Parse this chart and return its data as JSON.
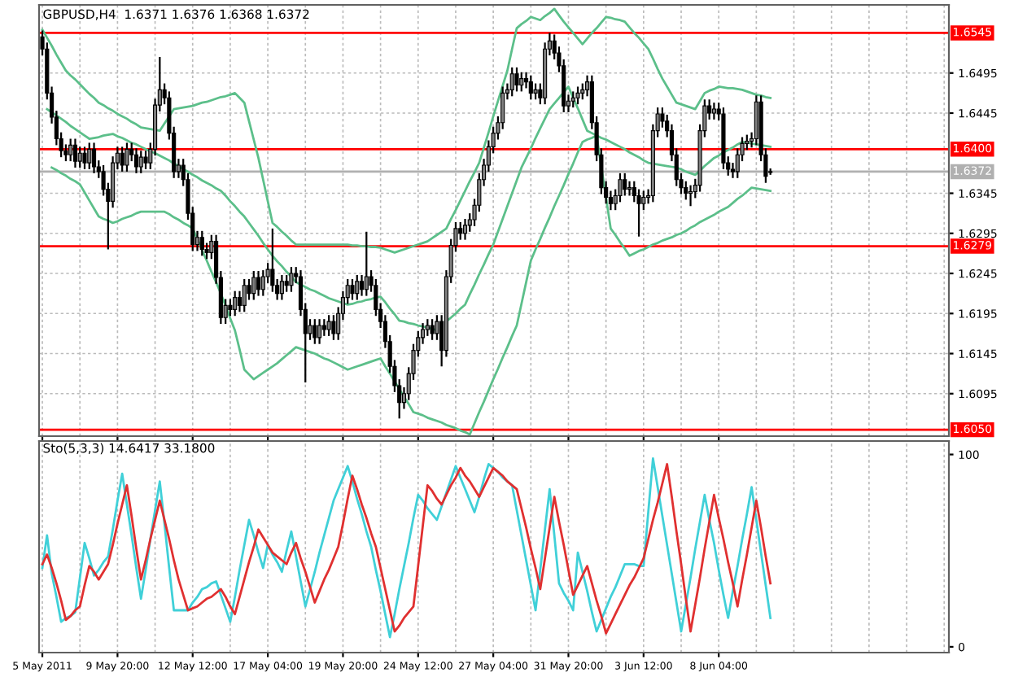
{
  "chart_data": [
    {
      "type": "candlestick",
      "title": "GBPUSD,H4  1.6371 1.6376 1.6368 1.6372",
      "ohlc": [
        [
          1.654,
          1.6548,
          1.6517,
          1.6525
        ],
        [
          1.6525,
          1.6533,
          1.6462,
          1.647
        ],
        [
          1.647,
          1.6478,
          1.6432,
          1.644
        ],
        [
          1.644,
          1.6448,
          1.6405,
          1.6413
        ],
        [
          1.6413,
          1.6421,
          1.639,
          1.6398
        ],
        [
          1.6398,
          1.6406,
          1.6385,
          1.6393
        ],
        [
          1.6393,
          1.6413,
          1.6385,
          1.6405
        ],
        [
          1.6405,
          1.6413,
          1.6377,
          1.6385
        ],
        [
          1.6385,
          1.6403,
          1.6377,
          1.6395
        ],
        [
          1.6395,
          1.6403,
          1.6375,
          1.6383
        ],
        [
          1.6383,
          1.6408,
          1.6375,
          1.64
        ],
        [
          1.64,
          1.6408,
          1.637,
          1.6378
        ],
        [
          1.6378,
          1.6386,
          1.6364,
          1.6372
        ],
        [
          1.6372,
          1.638,
          1.6342,
          1.635
        ],
        [
          1.635,
          1.6358,
          1.6275,
          1.6335
        ],
        [
          1.6335,
          1.6391,
          1.6327,
          1.6383
        ],
        [
          1.6383,
          1.6403,
          1.6375,
          1.6395
        ],
        [
          1.6395,
          1.6403,
          1.6372,
          1.638
        ],
        [
          1.638,
          1.6408,
          1.6372,
          1.64
        ],
        [
          1.64,
          1.6408,
          1.6385,
          1.6393
        ],
        [
          1.6393,
          1.6401,
          1.637,
          1.6378
        ],
        [
          1.6378,
          1.6398,
          1.637,
          1.639
        ],
        [
          1.639,
          1.6398,
          1.6375,
          1.6383
        ],
        [
          1.6383,
          1.6408,
          1.6375,
          1.64
        ],
        [
          1.64,
          1.6463,
          1.6392,
          1.6455
        ],
        [
          1.6455,
          1.6515,
          1.6447,
          1.6474
        ],
        [
          1.6474,
          1.6482,
          1.6456,
          1.6464
        ],
        [
          1.6464,
          1.6472,
          1.6412,
          1.642
        ],
        [
          1.642,
          1.6428,
          1.6364,
          1.6372
        ],
        [
          1.6372,
          1.6388,
          1.6364,
          1.638
        ],
        [
          1.638,
          1.6388,
          1.6354,
          1.6362
        ],
        [
          1.6362,
          1.637,
          1.6312,
          1.632
        ],
        [
          1.632,
          1.6328,
          1.6273,
          1.6281
        ],
        [
          1.6281,
          1.6298,
          1.6273,
          1.629
        ],
        [
          1.629,
          1.6298,
          1.6267,
          1.6275
        ],
        [
          1.6275,
          1.6283,
          1.6263,
          1.6271
        ],
        [
          1.6271,
          1.6293,
          1.6263,
          1.6285
        ],
        [
          1.6285,
          1.6293,
          1.6232,
          1.624
        ],
        [
          1.624,
          1.6248,
          1.6182,
          1.619
        ],
        [
          1.619,
          1.6213,
          1.6182,
          1.6205
        ],
        [
          1.6205,
          1.6213,
          1.6192,
          1.62
        ],
        [
          1.62,
          1.6223,
          1.6192,
          1.6215
        ],
        [
          1.6215,
          1.6223,
          1.6197,
          1.6205
        ],
        [
          1.6205,
          1.6238,
          1.6197,
          1.623
        ],
        [
          1.623,
          1.6238,
          1.6212,
          1.622
        ],
        [
          1.622,
          1.6248,
          1.6212,
          1.624
        ],
        [
          1.624,
          1.6248,
          1.6217,
          1.6225
        ],
        [
          1.6225,
          1.6249,
          1.6217,
          1.6241
        ],
        [
          1.6241,
          1.6258,
          1.6233,
          1.625
        ],
        [
          1.625,
          1.6301,
          1.6222,
          1.623
        ],
        [
          1.623,
          1.6238,
          1.6212,
          1.622
        ],
        [
          1.622,
          1.6243,
          1.6212,
          1.6235
        ],
        [
          1.6235,
          1.6243,
          1.6222,
          1.623
        ],
        [
          1.623,
          1.6253,
          1.6222,
          1.6245
        ],
        [
          1.6245,
          1.6253,
          1.6233,
          1.6241
        ],
        [
          1.6241,
          1.6249,
          1.6192,
          1.62
        ],
        [
          1.62,
          1.6208,
          1.6109,
          1.617
        ],
        [
          1.617,
          1.6188,
          1.6162,
          1.618
        ],
        [
          1.618,
          1.6188,
          1.6157,
          1.6165
        ],
        [
          1.6165,
          1.6188,
          1.6157,
          1.618
        ],
        [
          1.618,
          1.6188,
          1.6167,
          1.6175
        ],
        [
          1.6175,
          1.6193,
          1.6167,
          1.6185
        ],
        [
          1.6185,
          1.6193,
          1.6162,
          1.617
        ],
        [
          1.617,
          1.6203,
          1.6162,
          1.6195
        ],
        [
          1.6195,
          1.6223,
          1.6187,
          1.6215
        ],
        [
          1.6215,
          1.6238,
          1.6207,
          1.623
        ],
        [
          1.623,
          1.6238,
          1.6212,
          1.622
        ],
        [
          1.622,
          1.6243,
          1.6212,
          1.6235
        ],
        [
          1.6235,
          1.6243,
          1.6217,
          1.6225
        ],
        [
          1.6225,
          1.6297,
          1.6217,
          1.6241
        ],
        [
          1.6241,
          1.6249,
          1.6222,
          1.623
        ],
        [
          1.623,
          1.6238,
          1.6192,
          1.62
        ],
        [
          1.62,
          1.6208,
          1.6177,
          1.6185
        ],
        [
          1.6185,
          1.6193,
          1.6152,
          1.616
        ],
        [
          1.616,
          1.6168,
          1.6121,
          1.6129
        ],
        [
          1.6129,
          1.6137,
          1.6097,
          1.6105
        ],
        [
          1.6105,
          1.6113,
          1.6064,
          1.6084
        ],
        [
          1.6084,
          1.6103,
          1.6076,
          1.6095
        ],
        [
          1.6095,
          1.6128,
          1.6087,
          1.612
        ],
        [
          1.612,
          1.6157,
          1.6112,
          1.6149
        ],
        [
          1.6149,
          1.6173,
          1.6141,
          1.6165
        ],
        [
          1.6165,
          1.6183,
          1.6157,
          1.6175
        ],
        [
          1.6175,
          1.6188,
          1.6167,
          1.618
        ],
        [
          1.618,
          1.6188,
          1.6162,
          1.617
        ],
        [
          1.617,
          1.6193,
          1.6162,
          1.6185
        ],
        [
          1.6185,
          1.6193,
          1.6129,
          1.6149
        ],
        [
          1.6149,
          1.6249,
          1.6141,
          1.6241
        ],
        [
          1.6241,
          1.6288,
          1.6233,
          1.628
        ],
        [
          1.628,
          1.6309,
          1.6272,
          1.6301
        ],
        [
          1.6301,
          1.6309,
          1.6287,
          1.6295
        ],
        [
          1.6295,
          1.6313,
          1.6287,
          1.6305
        ],
        [
          1.6305,
          1.632,
          1.6297,
          1.6312
        ],
        [
          1.6312,
          1.6338,
          1.6304,
          1.633
        ],
        [
          1.633,
          1.637,
          1.6322,
          1.6362
        ],
        [
          1.6362,
          1.6388,
          1.6354,
          1.638
        ],
        [
          1.638,
          1.6411,
          1.6372,
          1.6403
        ],
        [
          1.6403,
          1.6428,
          1.6395,
          1.642
        ],
        [
          1.642,
          1.6441,
          1.6412,
          1.6433
        ],
        [
          1.6433,
          1.6478,
          1.6425,
          1.647
        ],
        [
          1.647,
          1.6482,
          1.6462,
          1.6474
        ],
        [
          1.6474,
          1.6502,
          1.6466,
          1.6494
        ],
        [
          1.6494,
          1.6502,
          1.6472,
          1.648
        ],
        [
          1.648,
          1.6496,
          1.6472,
          1.6488
        ],
        [
          1.6488,
          1.6496,
          1.6476,
          1.6484
        ],
        [
          1.6484,
          1.6492,
          1.6462,
          1.647
        ],
        [
          1.647,
          1.6482,
          1.6462,
          1.6474
        ],
        [
          1.6474,
          1.6482,
          1.6456,
          1.6464
        ],
        [
          1.6464,
          1.6533,
          1.6456,
          1.6525
        ],
        [
          1.6525,
          1.6545,
          1.6517,
          1.6535
        ],
        [
          1.6535,
          1.6543,
          1.6512,
          1.652
        ],
        [
          1.652,
          1.6528,
          1.6496,
          1.6504
        ],
        [
          1.6504,
          1.6512,
          1.6446,
          1.6454
        ],
        [
          1.6454,
          1.6468,
          1.6446,
          1.646
        ],
        [
          1.646,
          1.6472,
          1.6452,
          1.6464
        ],
        [
          1.6464,
          1.6478,
          1.6456,
          1.647
        ],
        [
          1.647,
          1.6482,
          1.6462,
          1.6474
        ],
        [
          1.6474,
          1.6492,
          1.6466,
          1.6484
        ],
        [
          1.6484,
          1.6492,
          1.6425,
          1.6433
        ],
        [
          1.6433,
          1.6441,
          1.6385,
          1.6393
        ],
        [
          1.6393,
          1.6401,
          1.6344,
          1.6352
        ],
        [
          1.6352,
          1.636,
          1.6332,
          1.634
        ],
        [
          1.634,
          1.6348,
          1.6324,
          1.6332
        ],
        [
          1.6332,
          1.635,
          1.6324,
          1.6342
        ],
        [
          1.6342,
          1.637,
          1.6334,
          1.6362
        ],
        [
          1.6362,
          1.637,
          1.6342,
          1.635
        ],
        [
          1.635,
          1.636,
          1.6342,
          1.6352
        ],
        [
          1.6352,
          1.636,
          1.6334,
          1.6342
        ],
        [
          1.6342,
          1.635,
          1.6291,
          1.6332
        ],
        [
          1.6332,
          1.6348,
          1.6324,
          1.634
        ],
        [
          1.634,
          1.635,
          1.6332,
          1.6342
        ],
        [
          1.6342,
          1.6431,
          1.6334,
          1.6423
        ],
        [
          1.6423,
          1.6452,
          1.6415,
          1.6444
        ],
        [
          1.6444,
          1.6452,
          1.6427,
          1.6435
        ],
        [
          1.6435,
          1.6443,
          1.6415,
          1.6423
        ],
        [
          1.6423,
          1.6431,
          1.6385,
          1.6393
        ],
        [
          1.6393,
          1.6401,
          1.6354,
          1.6362
        ],
        [
          1.6362,
          1.637,
          1.6344,
          1.6352
        ],
        [
          1.6352,
          1.636,
          1.6337,
          1.6345
        ],
        [
          1.6345,
          1.6355,
          1.6329,
          1.6347
        ],
        [
          1.6347,
          1.6363,
          1.6339,
          1.6355
        ],
        [
          1.6355,
          1.6431,
          1.6347,
          1.6423
        ],
        [
          1.6423,
          1.6462,
          1.6415,
          1.6454
        ],
        [
          1.6454,
          1.6462,
          1.6437,
          1.6445
        ],
        [
          1.6445,
          1.6458,
          1.6437,
          1.645
        ],
        [
          1.645,
          1.6458,
          1.6436,
          1.6444
        ],
        [
          1.6444,
          1.6452,
          1.6375,
          1.6383
        ],
        [
          1.6383,
          1.6391,
          1.6367,
          1.6375
        ],
        [
          1.6375,
          1.6383,
          1.6364,
          1.6372
        ],
        [
          1.6372,
          1.6401,
          1.6364,
          1.6393
        ],
        [
          1.6393,
          1.6415,
          1.6385,
          1.6407
        ],
        [
          1.6407,
          1.6418,
          1.6399,
          1.641
        ],
        [
          1.641,
          1.6421,
          1.6402,
          1.6413
        ],
        [
          1.6413,
          1.6467,
          1.6405,
          1.6459
        ],
        [
          1.6459,
          1.6467,
          1.6385,
          1.6393
        ],
        [
          1.6393,
          1.6401,
          1.6358,
          1.6366
        ],
        [
          1.6371,
          1.6376,
          1.6368,
          1.6372
        ],
        null,
        null,
        null,
        null,
        null,
        null,
        null,
        null,
        null,
        null,
        null,
        null,
        null,
        null,
        null,
        null,
        null,
        null,
        null,
        null,
        null,
        null,
        null,
        null,
        null,
        null,
        null,
        null,
        null,
        null,
        null,
        null,
        null,
        null,
        null,
        null,
        null,
        null
      ],
      "series": [
        {
          "type": "line",
          "color": "#5cbf8a",
          "values": [
            1.6549,
            1.6539,
            1.6529,
            1.6518,
            1.6508,
            1.6498,
            1.6492,
            1.6487,
            1.6481,
            1.6475,
            1.6469,
            1.6464,
            1.6458,
            1.6455,
            1.6451,
            1.6448,
            1.6444,
            1.6441,
            1.6438,
            1.6434,
            1.6431,
            1.6427,
            1.6426,
            1.6425,
            1.6424,
            1.6423,
            1.6432,
            1.6441,
            1.645,
            1.6451,
            1.6452,
            1.6453,
            1.6454,
            1.6456,
            1.6458,
            1.6459,
            1.6461,
            1.6463,
            1.6465,
            1.6466,
            1.6468,
            1.647,
            1.6464,
            1.6458,
            1.6435,
            1.6412,
            1.6389,
            1.6362,
            1.6335,
            1.6308,
            1.6303,
            1.6297,
            1.6292,
            1.6286,
            1.6281,
            1.6281,
            1.6281,
            1.6281,
            1.6281,
            1.6281,
            1.6281,
            1.6281,
            1.6281,
            1.6281,
            1.6281,
            1.6281,
            1.628,
            1.628,
            1.6279,
            1.6279,
            1.6278,
            1.6278,
            1.6277,
            1.6275,
            1.6273,
            1.6271,
            1.6273,
            1.6275,
            1.6277,
            1.6279,
            1.6281,
            1.6283,
            1.6285,
            1.6289,
            1.6293,
            1.6297,
            1.6301,
            1.6313,
            1.6324,
            1.6336,
            1.6348,
            1.636,
            1.6371,
            1.6383,
            1.6402,
            1.6421,
            1.6441,
            1.646,
            1.6479,
            1.6498,
            1.6525,
            1.6551,
            1.6556,
            1.656,
            1.6565,
            1.6563,
            1.6561,
            1.6566,
            1.657,
            1.6575,
            1.6567,
            1.6559,
            1.6552,
            1.6545,
            1.6538,
            1.6531,
            1.6538,
            1.6545,
            1.6551,
            1.6558,
            1.6565,
            1.6564,
            1.6562,
            1.6561,
            1.6559,
            1.6552,
            1.6545,
            1.6539,
            1.6532,
            1.6525,
            1.6513,
            1.65,
            1.6488,
            1.6478,
            1.6468,
            1.6458,
            1.6456,
            1.6454,
            1.6452,
            1.645,
            1.646,
            1.647,
            1.6473,
            1.6475,
            1.6478,
            1.6477,
            1.6476,
            1.6476,
            1.6475,
            1.6474,
            1.6472,
            1.647,
            1.6468,
            1.6467,
            1.6465,
            1.6464,
            null,
            null,
            null,
            null,
            null,
            null,
            null,
            null,
            null,
            null,
            null,
            null,
            null,
            null,
            null,
            null,
            null,
            null,
            null,
            null,
            null,
            null,
            null,
            null,
            null,
            null,
            null,
            null,
            null,
            null,
            null,
            null,
            null,
            null,
            null,
            null,
            null,
            null
          ]
        },
        {
          "type": "line",
          "color": "#5cbf8a",
          "values": [
            null,
            1.645,
            1.6446,
            1.6442,
            1.6438,
            1.6434,
            1.6429,
            1.6425,
            1.6421,
            1.6417,
            1.6413,
            1.6414,
            1.6415,
            1.6417,
            1.6418,
            1.6419,
            1.6416,
            1.6414,
            1.6411,
            1.6408,
            1.6406,
            1.6403,
            1.64,
            1.6397,
            1.6395,
            1.6392,
            1.6389,
            1.6386,
            1.6382,
            1.6379,
            1.6375,
            1.6372,
            1.6368,
            1.6365,
            1.6361,
            1.6358,
            1.6355,
            1.6351,
            1.6348,
            1.6342,
            1.6335,
            1.6329,
            1.6322,
            1.6316,
            1.6308,
            1.63,
            1.6292,
            1.6283,
            1.6275,
            1.6267,
            1.626,
            1.6254,
            1.6247,
            1.6241,
            1.6234,
            1.6231,
            1.6228,
            1.6225,
            1.6223,
            1.622,
            1.6217,
            1.6214,
            1.6212,
            1.621,
            1.6208,
            1.6206,
            1.6207,
            1.6209,
            1.621,
            1.6212,
            1.6213,
            1.6215,
            1.6216,
            1.6209,
            1.6201,
            1.6194,
            1.6186,
            1.6185,
            1.6183,
            1.6182,
            1.618,
            1.6179,
            1.6177,
            1.6176,
            1.6174,
            null,
            1.6185,
            1.619,
            1.6195,
            1.6201,
            1.6206,
            1.6219,
            1.6231,
            1.6244,
            1.6256,
            1.6269,
            1.6281,
            1.6297,
            1.6313,
            1.6329,
            1.6345,
            1.6361,
            1.6377,
            1.6389,
            1.6401,
            1.6414,
            1.6426,
            1.6438,
            1.645,
            1.6457,
            1.6464,
            1.6471,
            1.6478,
            1.6464,
            1.6451,
            1.6437,
            1.6423,
            1.642,
            1.6417,
            1.6414,
            1.6412,
            1.6409,
            1.6406,
            1.6403,
            1.64,
            1.6396,
            1.6393,
            1.639,
            1.6386,
            1.6383,
            1.6382,
            1.6381,
            1.638,
            1.6379,
            1.6378,
            1.6377,
            1.6375,
            1.6372,
            1.637,
            1.6368,
            1.6373,
            1.6379,
            1.6384,
            1.6389,
            1.6392,
            1.6396,
            1.6399,
            1.6402,
            1.6406,
            1.6409,
            1.6408,
            1.6407,
            1.6406,
            1.6405,
            1.6404,
            1.6403,
            null,
            null,
            null,
            null,
            null,
            null,
            null,
            null,
            null,
            null,
            null,
            null,
            null,
            null,
            null,
            null,
            null,
            null,
            null,
            null,
            null,
            null,
            null,
            null,
            null,
            null,
            null,
            null,
            null,
            null,
            null,
            null,
            null,
            null,
            null,
            null,
            null,
            null
          ]
        },
        {
          "type": "line",
          "color": "#5cbf8a",
          "values": [
            null,
            null,
            1.6377,
            1.6374,
            1.637,
            1.6367,
            1.6363,
            1.636,
            1.6356,
            1.6346,
            1.6336,
            1.6326,
            1.6316,
            1.6313,
            1.6311,
            1.6308,
            1.631,
            1.6313,
            1.6315,
            1.6317,
            1.632,
            1.6322,
            1.6322,
            1.6322,
            1.6322,
            1.6322,
            1.6322,
            1.6319,
            1.6315,
            1.6312,
            1.6308,
            1.6305,
            1.6301,
            1.6288,
            1.6274,
            1.6261,
            1.6247,
            1.6234,
            1.622,
            1.6205,
            1.6189,
            1.6174,
            1.615,
            1.6125,
            1.6119,
            1.6113,
            1.6117,
            1.6121,
            1.6125,
            1.6129,
            1.6133,
            1.6138,
            1.6143,
            1.6148,
            1.6153,
            1.6151,
            1.6149,
            1.6147,
            1.6145,
            1.6142,
            1.6139,
            1.6137,
            1.6134,
            1.6131,
            1.6128,
            1.6125,
            1.6127,
            1.6129,
            1.6131,
            1.6133,
            1.6135,
            1.6137,
            1.6139,
            1.6129,
            1.612,
            1.611,
            1.6101,
            1.6091,
            1.6082,
            1.6072,
            1.607,
            1.6068,
            1.6065,
            1.6063,
            1.6061,
            1.6059,
            1.6056,
            1.6054,
            1.6052,
            1.6049,
            1.6047,
            1.6044,
            1.6058,
            1.6072,
            1.6085,
            1.6099,
            1.6113,
            1.6126,
            1.614,
            1.6153,
            1.6167,
            1.618,
            1.6207,
            1.6234,
            1.6261,
            1.6275,
            1.6288,
            1.6302,
            1.6315,
            1.6329,
            1.6342,
            1.6355,
            1.6369,
            1.6382,
            1.6396,
            1.6409,
            1.6412,
            1.6414,
            1.6417,
            1.6378,
            1.634,
            1.6301,
            1.6293,
            1.6284,
            1.6276,
            1.6267,
            1.627,
            1.6273,
            1.6275,
            1.6278,
            1.6281,
            1.6283,
            1.6286,
            1.6288,
            1.629,
            1.6293,
            1.6295,
            1.6298,
            1.6302,
            1.6305,
            1.6309,
            1.6312,
            1.6315,
            1.6318,
            1.6322,
            1.6325,
            1.6328,
            1.6333,
            1.6338,
            1.6342,
            1.6347,
            1.6352,
            1.6351,
            1.635,
            1.6349,
            1.6348,
            null,
            null,
            null,
            null,
            null,
            null,
            null,
            null,
            null,
            null,
            null,
            null,
            null,
            null,
            null,
            null,
            null,
            null,
            null,
            null,
            null,
            null,
            null,
            null,
            null,
            null,
            null,
            null,
            null,
            null,
            null,
            null,
            null,
            null,
            null,
            null,
            null,
            null
          ]
        }
      ],
      "ylim": [
        1.6042,
        1.658
      ],
      "yticks": [
        1.6095,
        1.6145,
        1.6195,
        1.6245,
        1.6295,
        1.6345,
        1.6445,
        1.6495
      ],
      "ref_lines": [
        {
          "axis": "y",
          "value": 1.6545,
          "label": "1.6545",
          "color": "#ff0000"
        },
        {
          "axis": "y",
          "value": 1.64,
          "label": "1.6400",
          "color": "#ff0000"
        },
        {
          "axis": "y",
          "value": 1.6279,
          "label": "1.6279",
          "color": "#ff0000"
        },
        {
          "axis": "y",
          "value": 1.605,
          "label": "1.6050",
          "color": "#ff0000"
        },
        {
          "axis": "y",
          "value": 1.6372,
          "label": "1.6372",
          "color": "#b0b0b0"
        }
      ],
      "grid": true,
      "tick_labels": "y"
    },
    {
      "type": "line",
      "title": "Sto(5,3,3) 14.6417 33.1800",
      "categories": [
        "5 May 2011",
        null,
        null,
        null,
        null,
        null,
        null,
        null,
        null,
        null,
        null,
        null,
        null,
        null,
        null,
        null,
        "9 May 20:00",
        null,
        null,
        null,
        null,
        null,
        null,
        null,
        null,
        null,
        null,
        null,
        null,
        null,
        null,
        null,
        "12 May 12:00",
        null,
        null,
        null,
        null,
        null,
        null,
        null,
        null,
        null,
        null,
        null,
        null,
        null,
        null,
        null,
        "17 May 04:00",
        null,
        null,
        null,
        null,
        null,
        null,
        null,
        null,
        null,
        null,
        null,
        null,
        null,
        null,
        null,
        "19 May 20:00",
        null,
        null,
        null,
        null,
        null,
        null,
        null,
        null,
        null,
        null,
        null,
        null,
        null,
        null,
        null,
        "24 May 12:00",
        null,
        null,
        null,
        null,
        null,
        null,
        null,
        null,
        null,
        null,
        null,
        null,
        null,
        null,
        null,
        "27 May 04:00",
        null,
        null,
        null,
        null,
        null,
        null,
        null,
        null,
        null,
        null,
        null,
        null,
        null,
        null,
        null,
        "31 May 20:00",
        null,
        null,
        null,
        null,
        null,
        null,
        null,
        null,
        null,
        null,
        null,
        null,
        null,
        null,
        null,
        "3 Jun 12:00",
        null,
        null,
        null,
        null,
        null,
        null,
        null,
        null,
        null,
        null,
        null,
        null,
        null,
        null,
        null,
        "8 Jun 04:00",
        null,
        null,
        null,
        null,
        null,
        null,
        null,
        null,
        null,
        null,
        null,
        null,
        null,
        null,
        null,
        null,
        null,
        null,
        null,
        null,
        null,
        null,
        null,
        null,
        null,
        null,
        null,
        null,
        null,
        null,
        null,
        null,
        null,
        null,
        null,
        null,
        null,
        null,
        null,
        null,
        null,
        null,
        null,
        null,
        null,
        null,
        null,
        null,
        null
      ],
      "series": [
        {
          "color": "#40d0d8",
          "values": [
            41,
            58,
            38,
            26,
            13,
            15,
            16,
            18,
            36,
            54,
            46,
            37,
            40,
            44,
            47,
            61,
            76,
            90,
            74,
            58,
            41,
            25,
            40,
            56,
            71,
            86,
            64,
            41,
            19,
            19,
            19,
            19,
            23,
            26,
            30,
            31,
            33,
            34,
            27,
            20,
            13,
            26,
            40,
            53,
            66,
            58,
            49,
            41,
            53,
            48,
            44,
            39,
            50,
            60,
            47,
            34,
            21,
            30,
            39,
            49,
            58,
            67,
            76,
            82,
            88,
            94,
            86,
            77,
            69,
            60,
            52,
            40,
            29,
            17,
            5,
            17,
            30,
            42,
            54,
            67,
            79,
            76,
            72,
            69,
            66,
            73,
            80,
            87,
            94,
            88,
            82,
            76,
            70,
            78,
            87,
            95,
            93,
            91,
            88,
            86,
            84,
            71,
            58,
            45,
            32,
            19,
            40,
            61,
            82,
            58,
            33,
            28,
            24,
            19,
            49,
            39,
            29,
            18,
            8,
            14,
            20,
            26,
            31,
            37,
            43,
            43,
            43,
            42,
            42,
            70,
            98,
            83,
            68,
            53,
            38,
            23,
            8,
            22,
            36,
            51,
            65,
            79,
            66,
            54,
            40,
            27,
            15,
            29,
            42,
            56,
            69,
            83,
            66,
            49,
            32,
            15,
            null,
            null,
            null,
            null,
            null,
            null,
            null,
            null,
            null,
            null,
            null,
            null,
            null,
            null,
            null,
            null,
            null,
            null,
            null,
            null,
            null,
            null,
            null,
            null,
            null,
            null,
            null,
            null,
            null,
            null,
            null,
            null,
            null,
            null,
            null,
            null,
            null,
            null
          ]
        },
        {
          "color": "#e03030",
          "values": [
            43,
            48,
            41,
            33,
            24,
            14,
            16,
            19,
            21,
            32,
            42,
            39,
            35,
            39,
            43,
            53,
            64,
            74,
            84,
            68,
            51,
            35,
            45,
            56,
            66,
            76,
            66,
            56,
            45,
            35,
            27,
            19,
            20,
            21,
            23,
            25,
            26,
            28,
            30,
            26,
            21,
            17,
            26,
            35,
            44,
            52,
            61,
            57,
            53,
            49,
            47,
            45,
            43,
            49,
            54,
            46,
            39,
            31,
            23,
            29,
            35,
            40,
            46,
            52,
            64,
            77,
            89,
            82,
            74,
            67,
            59,
            52,
            41,
            30,
            19,
            8,
            11,
            15,
            18,
            21,
            42,
            63,
            84,
            81,
            77,
            74,
            79,
            84,
            88,
            93,
            89,
            86,
            82,
            78,
            83,
            88,
            93,
            91,
            89,
            86,
            84,
            82,
            72,
            62,
            51,
            41,
            30,
            46,
            62,
            78,
            65,
            53,
            40,
            27,
            32,
            37,
            42,
            33,
            24,
            16,
            7,
            12,
            17,
            22,
            27,
            32,
            36,
            41,
            46,
            56,
            66,
            75,
            85,
            95,
            78,
            60,
            43,
            25,
            8,
            22,
            36,
            51,
            65,
            79,
            67,
            56,
            44,
            33,
            21,
            35,
            48,
            62,
            76,
            62,
            47,
            33,
            null,
            null,
            null,
            null,
            null,
            null,
            null,
            null,
            null,
            null,
            null,
            null,
            null,
            null,
            null,
            null,
            null,
            null,
            null,
            null,
            null,
            null,
            null,
            null,
            null,
            null,
            null,
            null,
            null,
            null,
            null,
            null,
            null,
            null,
            null,
            null,
            null,
            null
          ]
        }
      ],
      "ylim": [
        -3,
        107
      ],
      "yticks": [
        0,
        100
      ],
      "grid": "x"
    }
  ]
}
